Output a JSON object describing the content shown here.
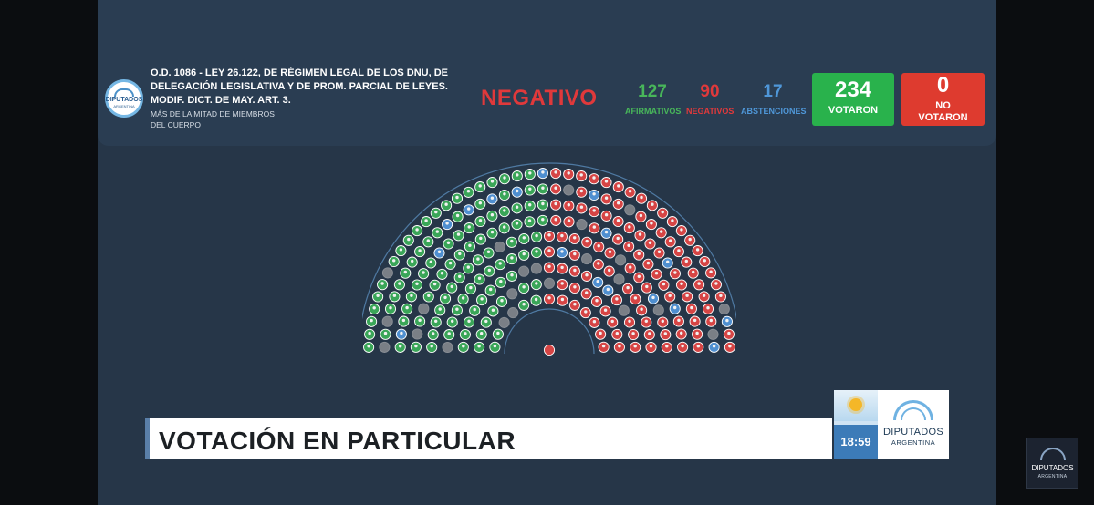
{
  "header": {
    "seal": {
      "name": "DIPUTADOS",
      "sub": "ARGENTINA"
    },
    "law_title": "O.D. 1086 - LEY 26.122, DE RÉGIMEN LEGAL DE LOS DNU, DE DELEGACIÓN LEGISLATIVA Y DE PROM. PARCIAL DE LEYES. MODIF. DICT. DE MAY. ART. 3.",
    "majority_note": "MÁS DE LA MITAD DE MIEMBROS DEL CUERPO",
    "result": "NEGATIVO",
    "stats": {
      "afirmativos": {
        "value": "127",
        "label": "AFIRMATIVOS"
      },
      "negativos": {
        "value": "90",
        "label": "NEGATIVOS"
      },
      "abstenciones": {
        "value": "17",
        "label": "ABSTENCIONES"
      }
    },
    "votaron": {
      "value": "234",
      "label": "VOTARON"
    },
    "no_votaron": {
      "value": "0",
      "label_line1": "NO",
      "label_line2": "VOTARON"
    }
  },
  "colors": {
    "afirmativo": "#3aa658",
    "negativo": "#d64545",
    "abstencion": "#4f8fd0",
    "ausente": "#7a7f86"
  },
  "chamber": {
    "total_seats": 257,
    "afirmativos": 127,
    "negativos": 90,
    "abstenciones": 17
  },
  "lower_third": {
    "title": "VOTACIÓN EN PARTICULAR",
    "time": "18:59",
    "logo_name": "DIPUTADOS",
    "logo_sub": "ARGENTINA"
  },
  "corner_logo": {
    "name": "DIPUTADOS",
    "sub": "ARGENTINA"
  }
}
